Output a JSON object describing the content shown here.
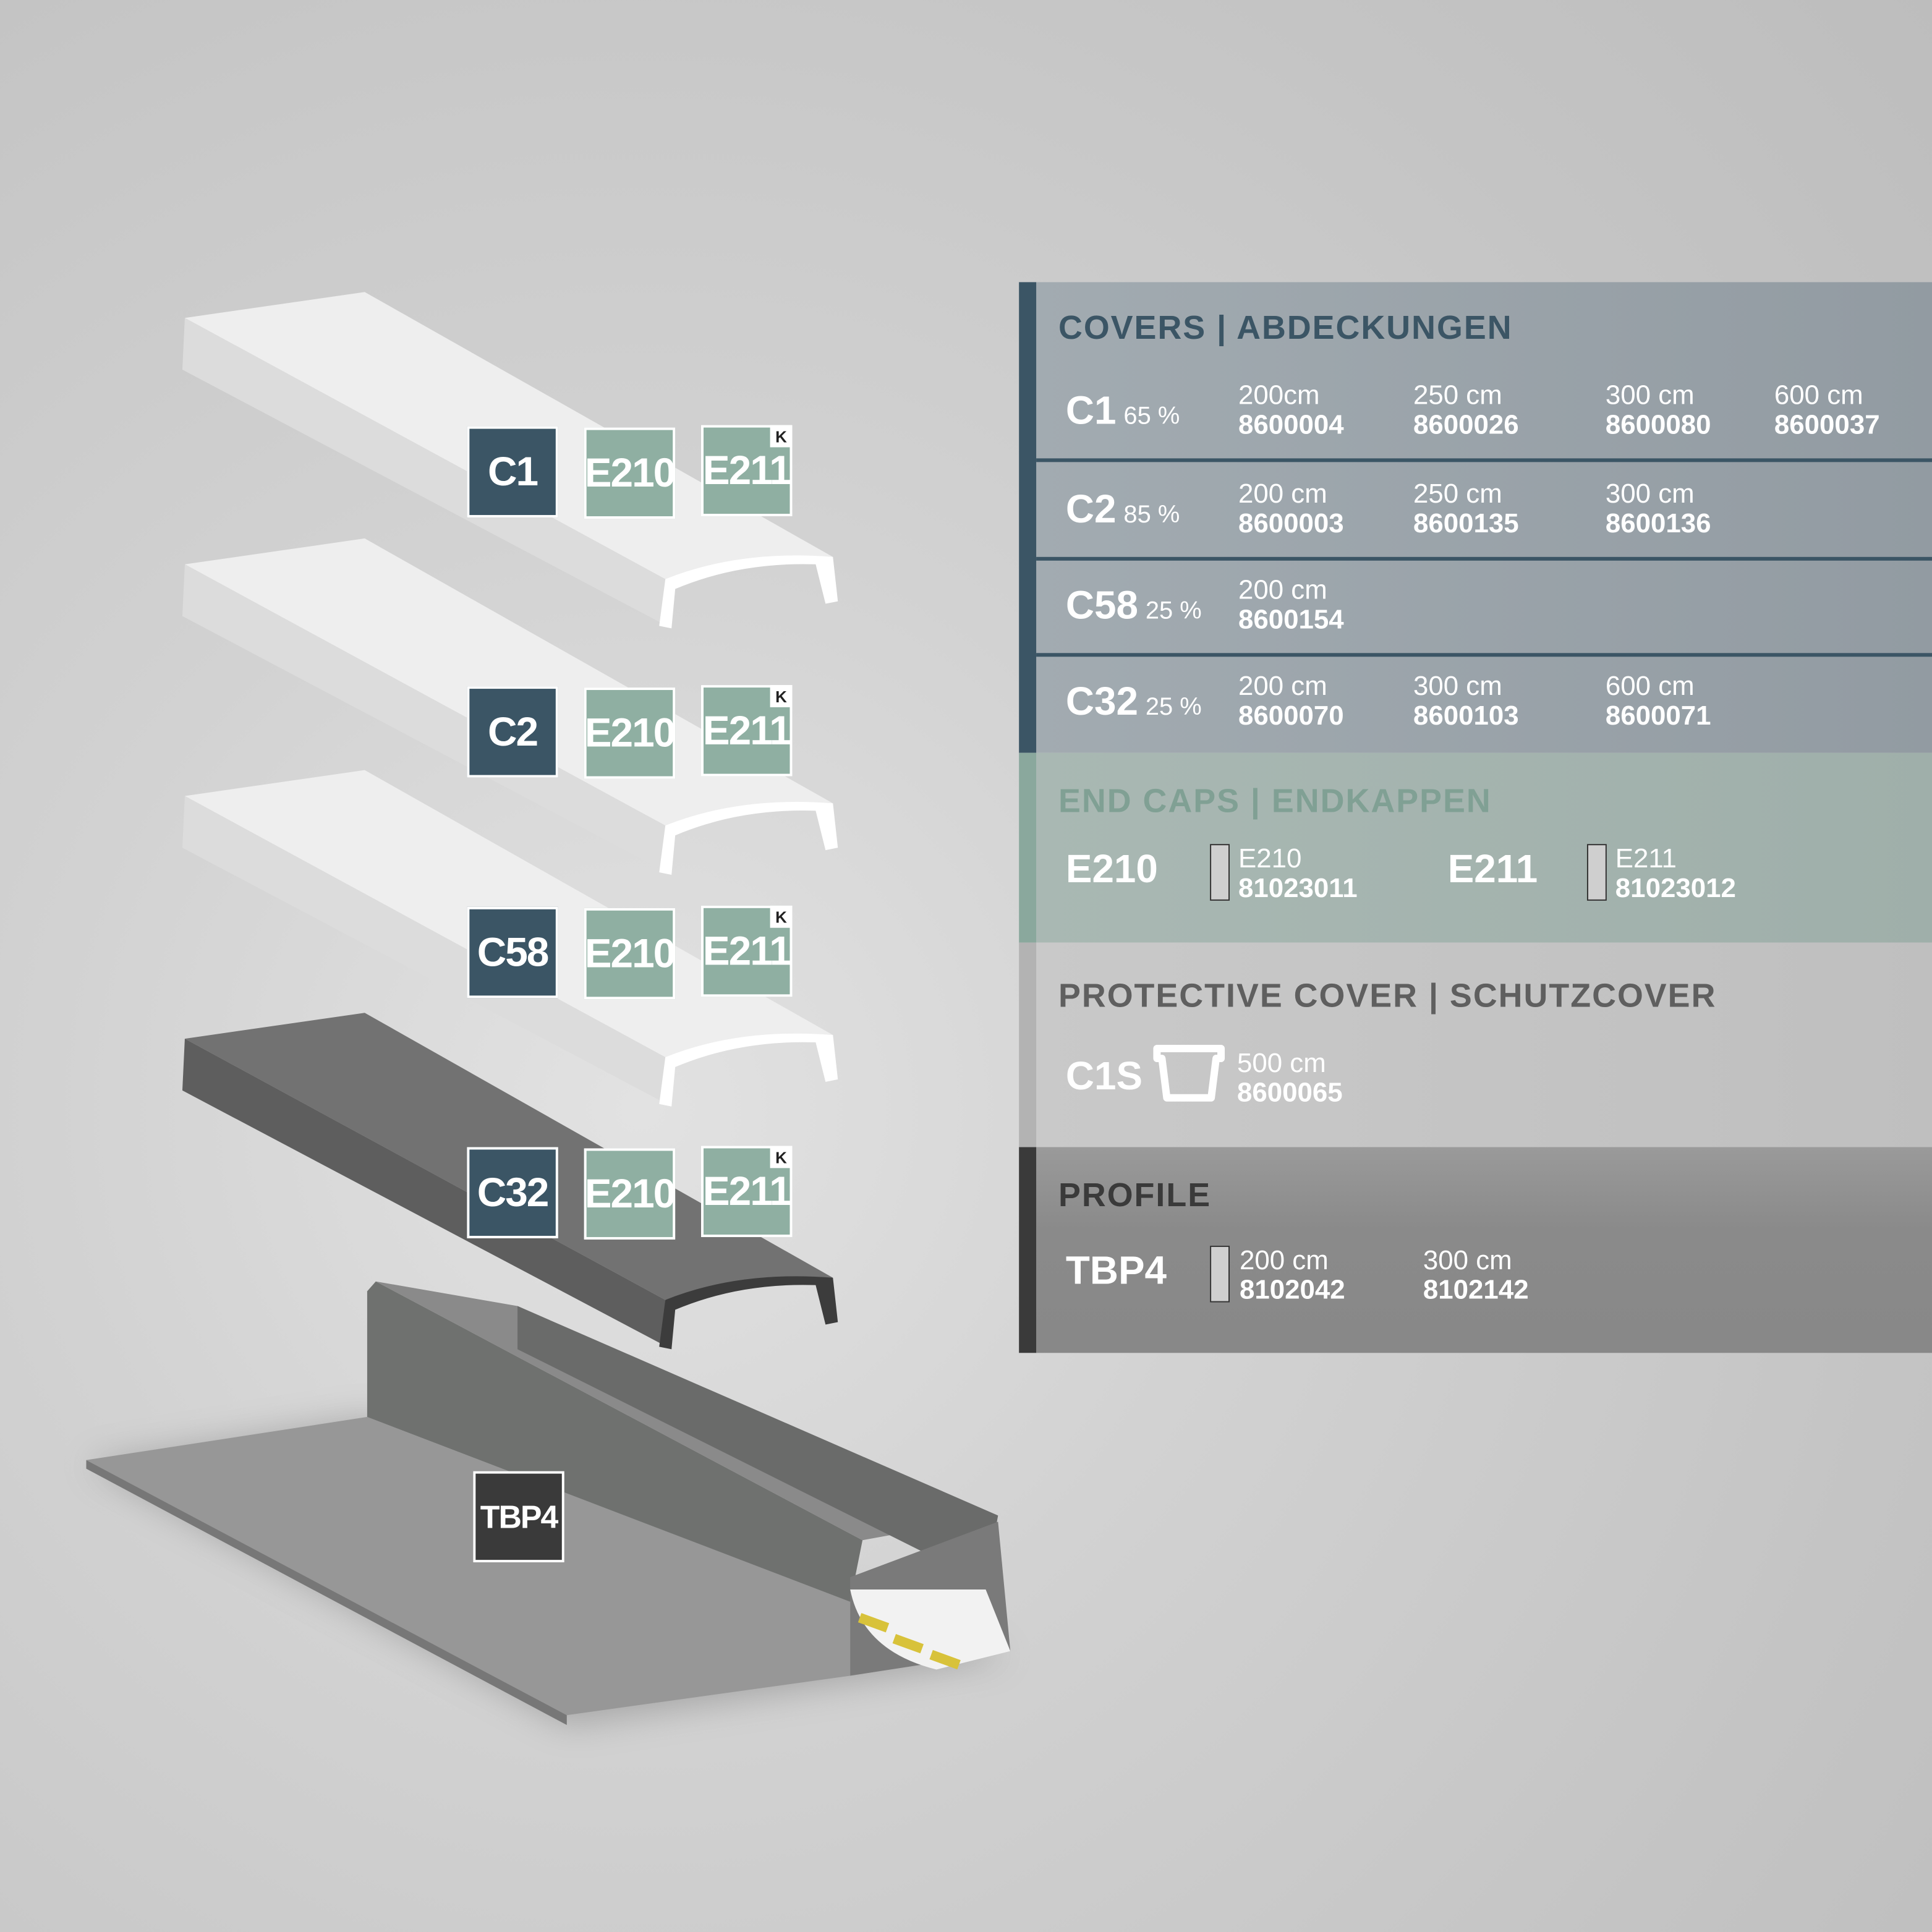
{
  "colors": {
    "covers": "#3b5565",
    "endcaps": "#8fafa2",
    "protective": "#b5b5b5",
    "profile": "#3a3a3a"
  },
  "illustration": {
    "tags": [
      {
        "code": "C1",
        "caps": [
          "E210",
          "E211"
        ],
        "badge": "K"
      },
      {
        "code": "C2",
        "caps": [
          "E210",
          "E211"
        ],
        "badge": "K"
      },
      {
        "code": "C58",
        "caps": [
          "E210",
          "E211"
        ],
        "badge": "K"
      },
      {
        "code": "C32",
        "caps": [
          "E210",
          "E211"
        ],
        "badge": "K"
      }
    ],
    "profile_tag": "TBP4"
  },
  "covers": {
    "title": "COVERS | ABDECKUNGEN",
    "rows": [
      {
        "code": "C1",
        "pct": "65 %",
        "items": [
          {
            "len": "200cm",
            "num": "8600004"
          },
          {
            "len": "250 cm",
            "num": "8600026"
          },
          {
            "len": "300 cm",
            "num": "8600080"
          },
          {
            "len": "600 cm",
            "num": "8600037"
          }
        ]
      },
      {
        "code": "C2",
        "pct": "85 %",
        "items": [
          {
            "len": "200 cm",
            "num": "8600003"
          },
          {
            "len": "250 cm",
            "num": "8600135"
          },
          {
            "len": "300 cm",
            "num": "8600136"
          }
        ]
      },
      {
        "code": "C58",
        "pct": "25 %",
        "items": [
          {
            "len": "200 cm",
            "num": "8600154"
          }
        ]
      },
      {
        "code": "C32",
        "pct": "25 %",
        "items": [
          {
            "len": "200 cm",
            "num": "8600070"
          },
          {
            "len": "300 cm",
            "num": "8600103"
          },
          {
            "len": "600 cm",
            "num": "8600071"
          }
        ]
      }
    ]
  },
  "endcaps": {
    "title": "END CAPS | ENDKAPPEN",
    "items": [
      {
        "code": "E210",
        "sub": "E210",
        "num": "81023011"
      },
      {
        "code": "E211",
        "sub": "E211",
        "num": "81023012"
      }
    ]
  },
  "protective": {
    "title": "PROTECTIVE COVER | SCHUTZCOVER",
    "code": "C1S",
    "icon": "cover-profile-icon",
    "len": "500 cm",
    "num": "8600065"
  },
  "profile": {
    "title": "PROFILE",
    "code": "TBP4",
    "items": [
      {
        "len": "200 cm",
        "num": "8102042"
      },
      {
        "len": "300 cm",
        "num": "8102142"
      }
    ]
  }
}
